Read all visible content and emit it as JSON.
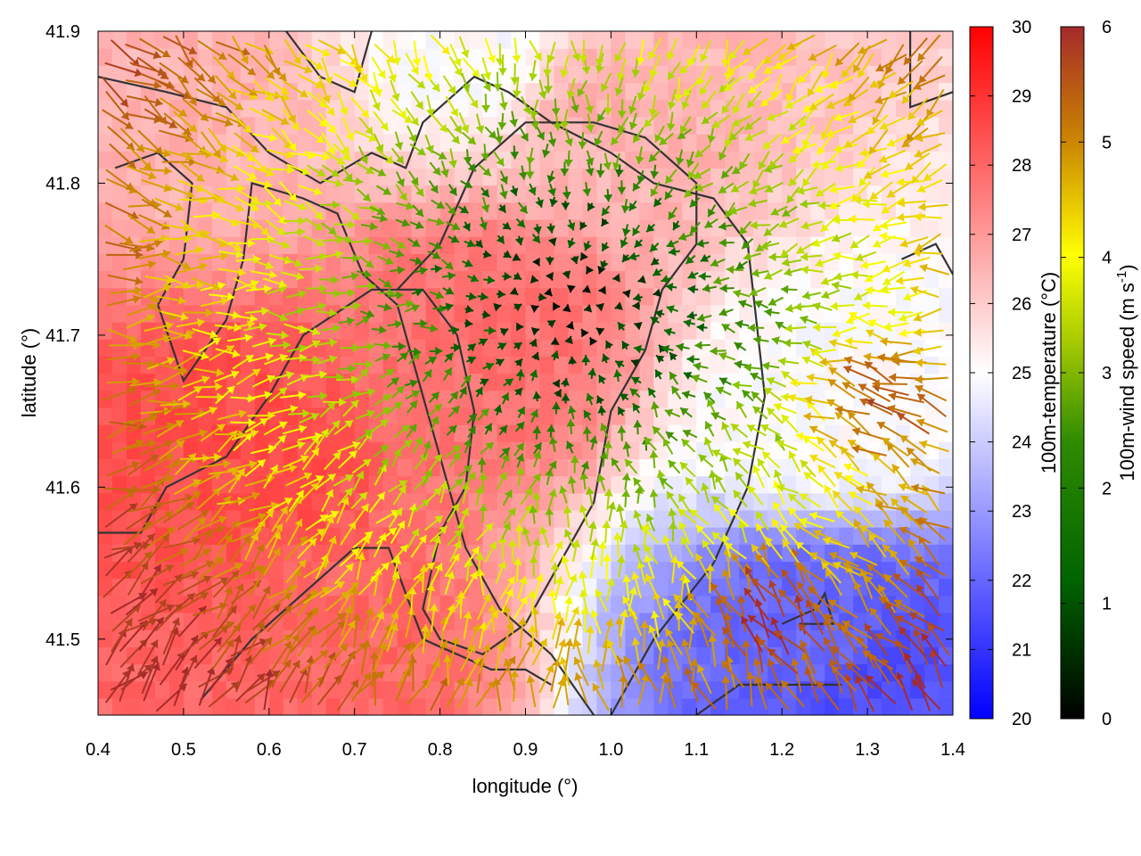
{
  "chart_data": {
    "type": "heatmap",
    "overlay": "vector-field",
    "title": "",
    "xlabel": "longitude (°)",
    "ylabel": "latitude (°)",
    "xlim": [
      0.4,
      1.4
    ],
    "ylim": [
      41.45,
      41.9
    ],
    "xticks": [
      "0.4",
      "0.5",
      "0.6",
      "0.7",
      "0.8",
      "0.9",
      "1.0",
      "1.1",
      "1.2",
      "1.3",
      "1.4"
    ],
    "yticks": [
      "41.5",
      "41.6",
      "41.7",
      "41.8",
      "41.9"
    ],
    "ytick_values": [
      41.5,
      41.6,
      41.7,
      41.8,
      41.9
    ],
    "grid": false,
    "field": {
      "name": "100m-temperature",
      "unit": "°C",
      "range": [
        20,
        30
      ],
      "colors": [
        "#0000ff",
        "#ffffff",
        "#ff0000"
      ],
      "approx_regions": [
        {
          "lon": 0.55,
          "lat": 41.62,
          "value": 28.5
        },
        {
          "lon": 0.85,
          "lat": 41.7,
          "value": 27.8
        },
        {
          "lon": 0.5,
          "lat": 41.85,
          "value": 26.5
        },
        {
          "lon": 1.0,
          "lat": 41.85,
          "value": 26.5
        },
        {
          "lon": 0.85,
          "lat": 41.89,
          "value": 25
        },
        {
          "lon": 1.25,
          "lat": 41.65,
          "value": 25
        },
        {
          "lon": 1.25,
          "lat": 41.5,
          "value": 22
        },
        {
          "lon": 1.3,
          "lat": 41.47,
          "value": 21.5
        },
        {
          "lon": 0.65,
          "lat": 41.48,
          "value": 28
        }
      ]
    },
    "vectors": {
      "name": "100m-wind speed",
      "unit": "m s-1",
      "range": [
        0,
        6
      ],
      "colors": [
        "#000000",
        "#006400",
        "#7fbf00",
        "#ffff00",
        "#cc8800",
        "#a52a2a"
      ],
      "calm_center": {
        "lon": 0.95,
        "lat": 41.72
      },
      "strong_regions": [
        {
          "lon": 0.45,
          "lat": 41.5,
          "speed": 6,
          "direction_deg": 120
        },
        {
          "lon": 1.2,
          "lat": 41.5,
          "speed": 6,
          "direction_deg": 45
        },
        {
          "lon": 1.35,
          "lat": 41.65,
          "speed": 5.5,
          "direction_deg": 90
        }
      ]
    },
    "colorbars": [
      {
        "label": "100m-temperature (°C)",
        "ticks": [
          "20",
          "21",
          "22",
          "23",
          "24",
          "25",
          "26",
          "27",
          "28",
          "29",
          "30"
        ]
      },
      {
        "label_main": "100m-wind speed (m s",
        "label_sup": "-1",
        "label_end": ")",
        "ticks": [
          "0",
          "1",
          "2",
          "3",
          "4",
          "5",
          "6"
        ]
      }
    ],
    "contours": [
      [
        [
          0.4,
          41.87
        ],
        [
          0.48,
          41.86
        ],
        [
          0.55,
          41.85
        ],
        [
          0.6,
          41.82
        ],
        [
          0.66,
          41.8
        ],
        [
          0.72,
          41.82
        ],
        [
          0.76,
          41.81
        ],
        [
          0.78,
          41.84
        ],
        [
          0.84,
          41.87
        ],
        [
          0.88,
          41.86
        ],
        [
          0.93,
          41.84
        ],
        [
          1.0,
          41.82
        ],
        [
          1.05,
          41.8
        ],
        [
          1.12,
          41.79
        ],
        [
          1.16,
          41.76
        ],
        [
          1.17,
          41.71
        ],
        [
          1.18,
          41.66
        ],
        [
          1.16,
          41.6
        ],
        [
          1.12,
          41.55
        ],
        [
          1.05,
          41.5
        ],
        [
          1.0,
          41.45
        ]
      ],
      [
        [
          0.42,
          41.81
        ],
        [
          0.47,
          41.82
        ],
        [
          0.51,
          41.8
        ],
        [
          0.5,
          41.75
        ],
        [
          0.47,
          41.72
        ],
        [
          0.5,
          41.67
        ],
        [
          0.55,
          41.71
        ],
        [
          0.57,
          41.75
        ],
        [
          0.58,
          41.8
        ],
        [
          0.64,
          41.79
        ],
        [
          0.68,
          41.78
        ],
        [
          0.71,
          41.74
        ],
        [
          0.75,
          41.72
        ],
        [
          0.77,
          41.68
        ],
        [
          0.8,
          41.62
        ],
        [
          0.83,
          41.56
        ],
        [
          0.87,
          41.52
        ],
        [
          0.93,
          41.49
        ],
        [
          0.98,
          41.45
        ]
      ],
      [
        [
          0.4,
          41.57
        ],
        [
          0.45,
          41.57
        ],
        [
          0.48,
          41.6
        ],
        [
          0.55,
          41.62
        ],
        [
          0.6,
          41.66
        ],
        [
          0.64,
          41.7
        ],
        [
          0.72,
          41.73
        ],
        [
          0.78,
          41.73
        ],
        [
          0.82,
          41.7
        ],
        [
          0.84,
          41.65
        ],
        [
          0.83,
          41.6
        ],
        [
          0.8,
          41.57
        ],
        [
          0.78,
          41.52
        ],
        [
          0.8,
          41.5
        ],
        [
          0.85,
          41.49
        ],
        [
          0.9,
          41.51
        ],
        [
          0.94,
          41.55
        ],
        [
          0.98,
          41.59
        ],
        [
          1.0,
          41.65
        ],
        [
          1.04,
          41.69
        ],
        [
          1.06,
          41.73
        ],
        [
          1.1,
          41.76
        ],
        [
          1.1,
          41.8
        ],
        [
          1.04,
          41.83
        ],
        [
          0.98,
          41.84
        ],
        [
          0.9,
          41.84
        ],
        [
          0.84,
          41.81
        ],
        [
          0.8,
          41.76
        ],
        [
          0.75,
          41.73
        ]
      ],
      [
        [
          0.52,
          41.46
        ],
        [
          0.58,
          41.5
        ],
        [
          0.64,
          41.53
        ],
        [
          0.7,
          41.56
        ],
        [
          0.74,
          41.56
        ],
        [
          0.76,
          41.53
        ],
        [
          0.78,
          41.5
        ],
        [
          0.82,
          41.49
        ],
        [
          0.86,
          41.48
        ],
        [
          0.9,
          41.48
        ],
        [
          0.93,
          41.47
        ]
      ],
      [
        [
          1.2,
          41.51
        ],
        [
          1.24,
          41.52
        ],
        [
          1.25,
          41.53
        ],
        [
          1.26,
          41.51
        ],
        [
          1.22,
          41.51
        ]
      ],
      [
        [
          1.1,
          41.45
        ],
        [
          1.15,
          41.47
        ],
        [
          1.22,
          41.47
        ],
        [
          1.27,
          41.47
        ]
      ],
      [
        [
          1.34,
          41.75
        ],
        [
          1.38,
          41.76
        ],
        [
          1.4,
          41.74
        ]
      ],
      [
        [
          1.35,
          41.9
        ],
        [
          1.35,
          41.85
        ],
        [
          1.4,
          41.86
        ]
      ],
      [
        [
          0.62,
          41.9
        ],
        [
          0.66,
          41.87
        ],
        [
          0.7,
          41.86
        ],
        [
          0.72,
          41.9
        ]
      ]
    ]
  }
}
